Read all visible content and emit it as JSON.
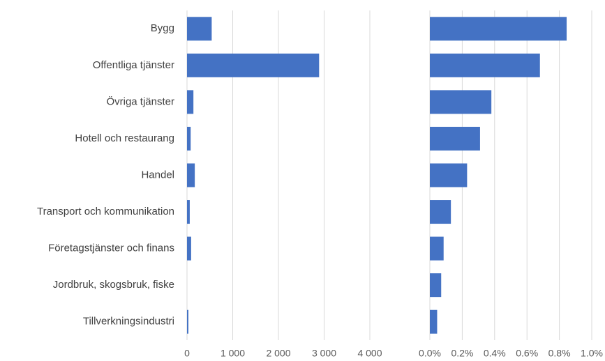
{
  "chart_data": [
    {
      "type": "barh",
      "categories": [
        "Bygg",
        "Offentliga tjänster",
        "Övriga tjänster",
        "Hotell och restaurang",
        "Handel",
        "Transport och kommunikation",
        "Företagstjänster och finans",
        "Jordbruk, skogsbruk, fiske",
        "Tillverkningsindustri"
      ],
      "values": [
        540,
        2890,
        140,
        80,
        170,
        60,
        90,
        0,
        30
      ],
      "color": "#4472c4",
      "xlim": [
        0,
        4000
      ],
      "xticks": [
        0,
        {
          "value": 1000,
          "label": "1 000"
        },
        {
          "value": 2000,
          "label": "2 000"
        },
        {
          "value": 3000,
          "label": "3 000"
        },
        {
          "value": 4000,
          "label": "4 000"
        }
      ],
      "grid": true
    },
    {
      "type": "barh",
      "values": [
        0.845,
        0.68,
        0.38,
        0.31,
        0.23,
        0.13,
        0.085,
        0.07,
        0.045
      ],
      "color": "#4472c4",
      "xlim": [
        0,
        1.0
      ],
      "xticks": [
        {
          "value": 0,
          "label": "0.0%"
        },
        {
          "value": 0.2,
          "label": "0.2%"
        },
        {
          "value": 0.4,
          "label": "0.4%"
        },
        {
          "value": 0.6,
          "label": "0.6%"
        },
        {
          "value": 0.8,
          "label": "0.8%"
        },
        {
          "value": 1.0,
          "label": "1.0%"
        }
      ],
      "grid": true
    }
  ]
}
